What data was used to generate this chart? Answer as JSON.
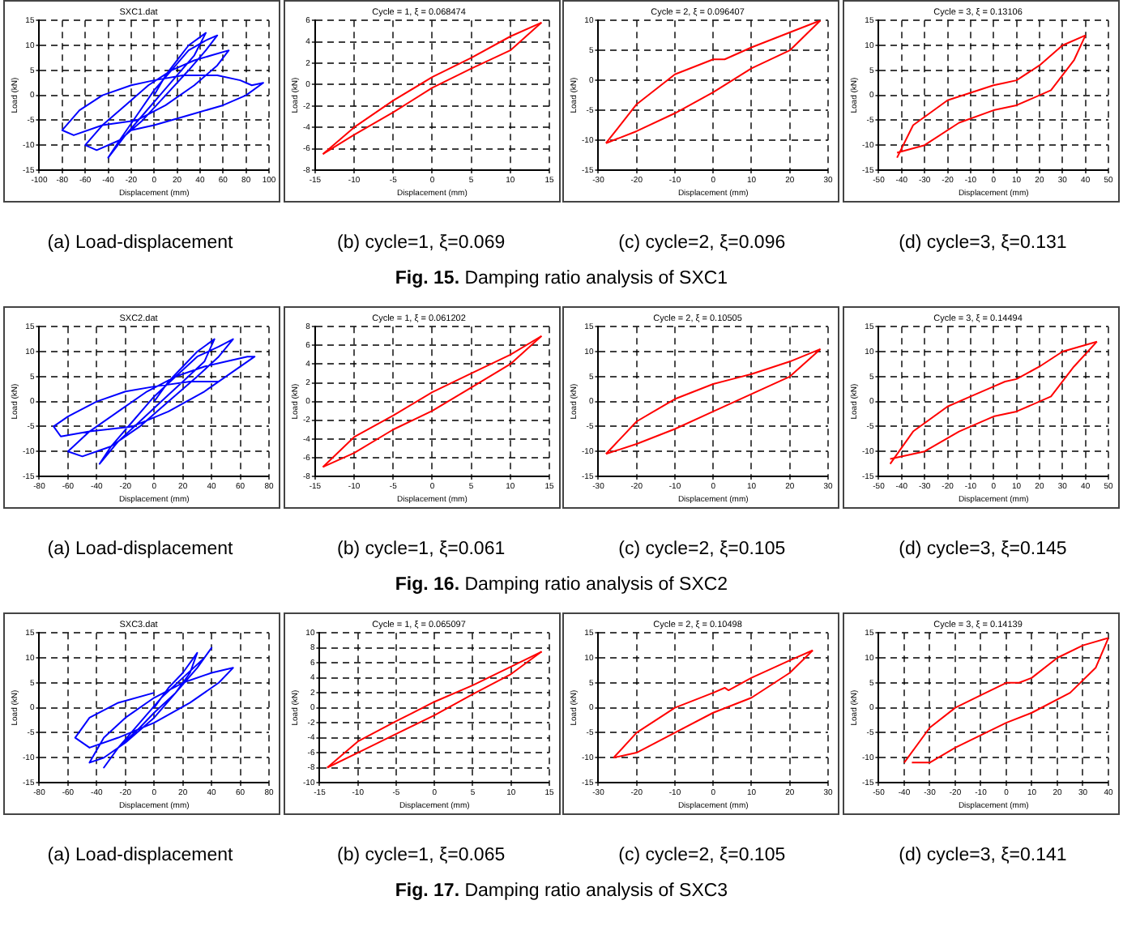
{
  "chart_data": [
    {
      "type": "line",
      "title": "SXC1.dat",
      "xlabel": "Displacement (mm)",
      "ylabel": "Load (kN)",
      "xlim": [
        -100,
        100
      ],
      "xticks": [
        -100,
        -80,
        -60,
        -40,
        -20,
        0,
        20,
        40,
        60,
        80,
        100
      ],
      "ylim": [
        -15,
        15
      ],
      "yticks": [
        -15,
        -10,
        -5,
        0,
        5,
        10,
        15
      ],
      "grid": true,
      "marker": "none",
      "line_style": "solid",
      "annotations": [
        "(a) Load-displacement",
        "Fig. 15. Damping ratio analysis of SXC1"
      ],
      "series": [
        {
          "color": "#0000ff",
          "x": [
            0,
            10,
            20,
            30,
            45,
            35,
            20,
            5,
            -10,
            -25,
            -40,
            -30,
            -15,
            0,
            15,
            30,
            45,
            55,
            45,
            30,
            10,
            -10,
            -30,
            -50,
            -60,
            -45,
            -25,
            -5,
            15,
            35,
            50,
            65,
            55,
            35,
            10,
            -15,
            -45,
            -70,
            -80,
            -65,
            -45,
            -20,
            0,
            25,
            55,
            75,
            85,
            95,
            80,
            60,
            30,
            0,
            -20
          ],
          "values": [
            0,
            4,
            7,
            10,
            12.5,
            8,
            4,
            0,
            -4,
            -8,
            -12.5,
            -9,
            -4,
            1,
            5,
            9,
            11,
            12,
            9,
            5,
            0,
            -5,
            -9,
            -11,
            -10,
            -6,
            -2,
            2,
            5,
            7,
            8,
            9,
            6,
            2,
            -2,
            -5,
            -6,
            -8,
            -7,
            -3,
            0,
            2,
            3,
            4,
            4,
            3,
            2,
            2.5,
            0,
            -2,
            -4,
            -6,
            -7
          ]
        }
      ]
    },
    {
      "type": "line",
      "title": "Cycle = 1, ξ = 0.068474",
      "xlabel": "Displacement (mm)",
      "ylabel": "Load (kN)",
      "xlim": [
        -15,
        15
      ],
      "xticks": [
        -15,
        -10,
        -5,
        0,
        5,
        10,
        15
      ],
      "ylim": [
        -8,
        6
      ],
      "yticks": [
        -8,
        -6,
        -4,
        -2,
        0,
        2,
        4,
        6
      ],
      "grid": true,
      "marker": "none",
      "line_style": "solid",
      "annotations": [
        "(b) cycle=1, ξ=0.069"
      ],
      "series": [
        {
          "color": "#ff0000",
          "x": [
            -14,
            -10,
            -5,
            0,
            5,
            10,
            14
          ],
          "values": [
            -6.5,
            -4,
            -1.5,
            0.7,
            2.5,
            4.5,
            5.8
          ]
        },
        {
          "color": "#ff0000",
          "x": [
            14,
            10,
            5,
            0,
            -5,
            -10,
            -14
          ],
          "values": [
            5.8,
            3.2,
            1.5,
            -0.3,
            -2.6,
            -4.7,
            -6.5
          ]
        }
      ]
    },
    {
      "type": "line",
      "title": "Cycle = 2, ξ = 0.096407",
      "xlabel": "Displacement (mm)",
      "ylabel": "Load (kN)",
      "xlim": [
        -30,
        30
      ],
      "xticks": [
        -30,
        -20,
        -10,
        0,
        10,
        20,
        30
      ],
      "ylim": [
        -15,
        10
      ],
      "yticks": [
        -15,
        -10,
        -5,
        0,
        5,
        10
      ],
      "grid": true,
      "marker": "none",
      "line_style": "solid",
      "annotations": [
        "(c) cycle=2, ξ=0.096"
      ],
      "series": [
        {
          "color": "#ff0000",
          "x": [
            -28,
            -20,
            -10,
            0,
            3,
            10,
            20,
            28
          ],
          "values": [
            -10.5,
            -4,
            1,
            3.5,
            3.5,
            5.5,
            8,
            10
          ]
        },
        {
          "color": "#ff0000",
          "x": [
            28,
            20,
            10,
            0,
            -10,
            -20,
            -28
          ],
          "values": [
            10,
            5,
            2,
            -2,
            -5.5,
            -8.5,
            -10.5
          ]
        }
      ]
    },
    {
      "type": "line",
      "title": "Cycle = 3, ξ = 0.13106",
      "xlabel": "Displacement (mm)",
      "ylabel": "Load (kN)",
      "xlim": [
        -50,
        50
      ],
      "xticks": [
        -50,
        -40,
        -30,
        -20,
        -10,
        0,
        10,
        20,
        30,
        40,
        50
      ],
      "ylim": [
        -15,
        15
      ],
      "yticks": [
        -15,
        -10,
        -5,
        0,
        5,
        10,
        15
      ],
      "grid": true,
      "marker": "none",
      "line_style": "solid",
      "annotations": [
        "(d) cycle=3, ξ=0.131"
      ],
      "series": [
        {
          "color": "#ff0000",
          "x": [
            -42,
            -35,
            -20,
            -10,
            0,
            5,
            10,
            20,
            30,
            40
          ],
          "values": [
            -12.5,
            -6,
            -1,
            0.5,
            2,
            2.5,
            3,
            6,
            10,
            12
          ]
        },
        {
          "color": "#ff0000",
          "x": [
            40,
            35,
            25,
            10,
            0,
            -15,
            -30,
            -42
          ],
          "values": [
            12,
            7,
            1,
            -2,
            -3,
            -5.5,
            -10,
            -11.5
          ]
        }
      ]
    },
    {
      "type": "line",
      "title": "SXC2.dat",
      "xlabel": "Displacement (mm)",
      "ylabel": "Load (kN)",
      "xlim": [
        -80,
        80
      ],
      "xticks": [
        -80,
        -60,
        -40,
        -20,
        0,
        20,
        40,
        60,
        80
      ],
      "ylim": [
        -15,
        15
      ],
      "yticks": [
        -15,
        -10,
        -5,
        0,
        5,
        10,
        15
      ],
      "grid": true,
      "marker": "none",
      "line_style": "solid",
      "annotations": [
        "(a) Load-displacement",
        "Fig. 16. Damping ratio analysis of SXC2"
      ],
      "series": [
        {
          "color": "#0000ff",
          "x": [
            0,
            10,
            20,
            30,
            42,
            35,
            20,
            5,
            -10,
            -25,
            -38,
            -30,
            -15,
            0,
            15,
            30,
            45,
            55,
            45,
            30,
            10,
            -10,
            -30,
            -50,
            -60,
            -45,
            -25,
            -5,
            15,
            35,
            50,
            65,
            70,
            55,
            35,
            10,
            -15,
            -45,
            -65,
            -70,
            -60,
            -40,
            -20,
            0,
            25,
            45
          ],
          "values": [
            0,
            4,
            7,
            10,
            12.5,
            8,
            4,
            0,
            -4,
            -8,
            -12.5,
            -9,
            -4,
            1,
            5,
            9,
            11,
            12.5,
            9,
            5,
            0,
            -5,
            -9,
            -11,
            -10,
            -6,
            -2,
            2,
            5,
            7,
            8,
            9,
            9,
            6,
            2,
            -2,
            -5,
            -6,
            -7,
            -5,
            -3,
            0,
            2,
            3,
            4,
            4
          ]
        }
      ]
    },
    {
      "type": "line",
      "title": "Cycle = 1, ξ = 0.061202",
      "xlabel": "Displacement (mm)",
      "ylabel": "Load (kN)",
      "xlim": [
        -15,
        15
      ],
      "xticks": [
        -15,
        -10,
        -5,
        0,
        5,
        10,
        15
      ],
      "ylim": [
        -8,
        8
      ],
      "yticks": [
        -8,
        -6,
        -4,
        -2,
        0,
        2,
        4,
        6,
        8
      ],
      "grid": true,
      "marker": "none",
      "line_style": "solid",
      "annotations": [
        "(b) cycle=1, ξ=0.061"
      ],
      "series": [
        {
          "color": "#ff0000",
          "x": [
            -14,
            -10,
            -5,
            0,
            5,
            10,
            14
          ],
          "values": [
            -7,
            -3.8,
            -1.5,
            1,
            3,
            5,
            7
          ]
        },
        {
          "color": "#ff0000",
          "x": [
            14,
            10,
            5,
            0,
            -5,
            -10,
            -14
          ],
          "values": [
            7,
            4,
            1.5,
            -1,
            -3,
            -5.5,
            -7
          ]
        }
      ]
    },
    {
      "type": "line",
      "title": "Cycle = 2, ξ = 0.10505",
      "xlabel": "Displacement (mm)",
      "ylabel": "Load (kN)",
      "xlim": [
        -30,
        30
      ],
      "xticks": [
        -30,
        -20,
        -10,
        0,
        10,
        20,
        30
      ],
      "ylim": [
        -15,
        15
      ],
      "yticks": [
        -15,
        -10,
        -5,
        0,
        5,
        10,
        15
      ],
      "grid": true,
      "marker": "none",
      "line_style": "solid",
      "annotations": [
        "(c) cycle=2, ξ=0.105"
      ],
      "series": [
        {
          "color": "#ff0000",
          "x": [
            -28,
            -20,
            -10,
            0,
            5,
            10,
            20,
            28
          ],
          "values": [
            -10.5,
            -4,
            0.5,
            3.5,
            4.5,
            5.5,
            8,
            10.5
          ]
        },
        {
          "color": "#ff0000",
          "x": [
            28,
            20,
            10,
            0,
            -10,
            -20,
            -28
          ],
          "values": [
            10.5,
            5,
            1.5,
            -2,
            -5.5,
            -8.5,
            -10.5
          ]
        }
      ]
    },
    {
      "type": "line",
      "title": "Cycle = 3, ξ = 0.14494",
      "xlabel": "Displacement (mm)",
      "ylabel": "Load (kN)",
      "xlim": [
        -50,
        50
      ],
      "xticks": [
        -50,
        -40,
        -30,
        -20,
        -10,
        0,
        10,
        20,
        30,
        40,
        50
      ],
      "ylim": [
        -15,
        15
      ],
      "yticks": [
        -15,
        -10,
        -5,
        0,
        5,
        10,
        15
      ],
      "grid": true,
      "marker": "none",
      "line_style": "solid",
      "annotations": [
        "(d) cycle=3, ξ=0.145"
      ],
      "series": [
        {
          "color": "#ff0000",
          "x": [
            -45,
            -35,
            -20,
            -10,
            0,
            5,
            10,
            20,
            30,
            45
          ],
          "values": [
            -12.5,
            -6,
            -1,
            1,
            3,
            4,
            4.5,
            7,
            10,
            12
          ]
        },
        {
          "color": "#ff0000",
          "x": [
            45,
            35,
            25,
            10,
            0,
            -15,
            -30,
            -45
          ],
          "values": [
            12,
            7,
            1,
            -2,
            -3,
            -6,
            -10,
            -11.5
          ]
        }
      ]
    },
    {
      "type": "line",
      "title": "SXC3.dat",
      "xlabel": "Displacement (mm)",
      "ylabel": "Load (kN)",
      "xlim": [
        -80,
        80
      ],
      "xticks": [
        -80,
        -60,
        -40,
        -20,
        0,
        20,
        40,
        60,
        80
      ],
      "ylim": [
        -15,
        15
      ],
      "yticks": [
        -15,
        -10,
        -5,
        0,
        5,
        10,
        15
      ],
      "grid": true,
      "marker": "none",
      "line_style": "solid",
      "annotations": [
        "(a) Load-displacement",
        "Fig. 17. Damping ratio analysis of SXC3"
      ],
      "series": [
        {
          "color": "#0000ff",
          "x": [
            0,
            10,
            20,
            30,
            25,
            15,
            0,
            -10,
            -25,
            -35,
            -25,
            -10,
            5,
            20,
            35,
            40,
            30,
            15,
            0,
            -20,
            -35,
            -45,
            -35,
            -20,
            0,
            20,
            40,
            55,
            45,
            25,
            0,
            -25,
            -45,
            -55,
            -45,
            -25,
            0
          ],
          "values": [
            0,
            4,
            7,
            11,
            7,
            3,
            -1,
            -4,
            -8,
            -12,
            -8,
            -3,
            2,
            6,
            10,
            12,
            8,
            3,
            -2,
            -7,
            -10,
            -11,
            -6,
            -2,
            2,
            5,
            7,
            8,
            5,
            1,
            -3,
            -6,
            -8,
            -6,
            -2,
            1,
            3
          ]
        }
      ]
    },
    {
      "type": "line",
      "title": "Cycle = 1, ξ = 0.065097",
      "xlabel": "Displacement (mm)",
      "ylabel": "Load (kN)",
      "xlim": [
        -15,
        15
      ],
      "xticks": [
        -15,
        -10,
        -5,
        0,
        5,
        10,
        15
      ],
      "ylim": [
        -10,
        10
      ],
      "yticks": [
        -10,
        -8,
        -6,
        -4,
        -2,
        0,
        2,
        4,
        6,
        8,
        10
      ],
      "grid": true,
      "marker": "none",
      "line_style": "solid",
      "annotations": [
        "(b) cycle=1, ξ=0.065"
      ],
      "series": [
        {
          "color": "#ff0000",
          "x": [
            -14,
            -10,
            -5,
            0,
            5,
            10,
            14
          ],
          "values": [
            -8,
            -4.5,
            -1.8,
            0.8,
            3,
            5.5,
            7.5
          ]
        },
        {
          "color": "#ff0000",
          "x": [
            14,
            10,
            5,
            0,
            -5,
            -10,
            -14
          ],
          "values": [
            7.5,
            4.5,
            1.8,
            -1,
            -3.5,
            -6,
            -8
          ]
        }
      ]
    },
    {
      "type": "line",
      "title": "Cycle = 2, ξ = 0.10498",
      "xlabel": "Displacement (mm)",
      "ylabel": "Load (kN)",
      "xlim": [
        -30,
        30
      ],
      "xticks": [
        -30,
        -20,
        -10,
        0,
        10,
        20,
        30
      ],
      "ylim": [
        -15,
        15
      ],
      "yticks": [
        -15,
        -10,
        -5,
        0,
        5,
        10,
        15
      ],
      "grid": true,
      "marker": "none",
      "line_style": "solid",
      "annotations": [
        "(c) cycle=2, ξ=0.105"
      ],
      "series": [
        {
          "color": "#ff0000",
          "x": [
            -26,
            -20,
            -10,
            0,
            3,
            4,
            10,
            20,
            26
          ],
          "values": [
            -10,
            -5,
            0,
            3,
            4,
            3.5,
            6,
            9.5,
            11.5
          ]
        },
        {
          "color": "#ff0000",
          "x": [
            26,
            20,
            10,
            0,
            -10,
            -20,
            -26
          ],
          "values": [
            11.5,
            7,
            2,
            -1,
            -5,
            -9,
            -10
          ]
        }
      ]
    },
    {
      "type": "line",
      "title": "Cycle = 3, ξ = 0.14139",
      "xlabel": "Displacement (mm)",
      "ylabel": "Load (kN)",
      "xlim": [
        -50,
        40
      ],
      "xticks": [
        -50,
        -40,
        -30,
        -20,
        -10,
        0,
        10,
        20,
        30,
        40
      ],
      "ylim": [
        -15,
        15
      ],
      "yticks": [
        -15,
        -10,
        -5,
        0,
        5,
        10,
        15
      ],
      "grid": true,
      "marker": "none",
      "line_style": "solid",
      "annotations": [
        "(d) cycle=3, ξ=0.141"
      ],
      "series": [
        {
          "color": "#ff0000",
          "x": [
            -40,
            -30,
            -20,
            -10,
            0,
            5,
            10,
            20,
            30,
            40
          ],
          "values": [
            -11,
            -4,
            0,
            2.5,
            5,
            5,
            6,
            10,
            12.5,
            14
          ]
        },
        {
          "color": "#ff0000",
          "x": [
            40,
            35,
            25,
            10,
            0,
            -20,
            -30,
            -37
          ],
          "values": [
            14,
            8,
            3,
            -1,
            -3,
            -8,
            -11,
            -11
          ]
        }
      ]
    }
  ]
}
